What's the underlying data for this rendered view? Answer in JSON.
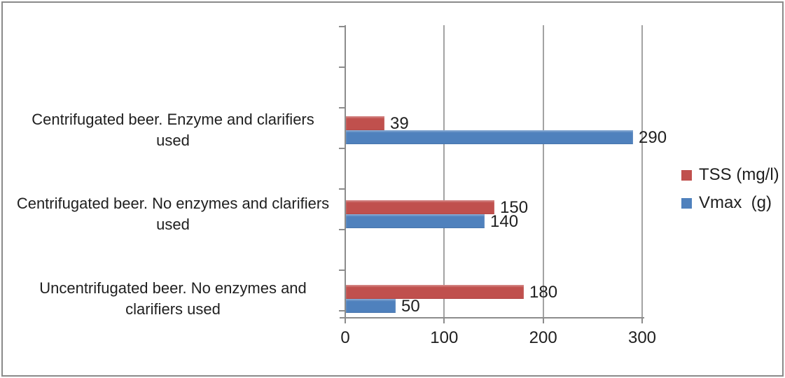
{
  "chart_data": {
    "type": "bar",
    "orientation": "horizontal",
    "title": "",
    "categories": [
      "Centrifugated beer. Enzyme and clarifiers used",
      "Centrifugated beer. No enzymes and clarifiers used",
      "Uncentrifugated beer. No enzymes and clarifiers used"
    ],
    "category_label_lines": [
      [
        "Centrifugated beer. Enzyme and clarifiers",
        "used"
      ],
      [
        "Centrifugated beer. No enzymes and clarifiers",
        "used"
      ],
      [
        "Uncentrifugated beer. No enzymes and",
        "clarifiers used"
      ]
    ],
    "series": [
      {
        "name": "TSS (mg/l)",
        "color": "#C0504D",
        "values": [
          39,
          150,
          180
        ]
      },
      {
        "name": "Vmax  (g)",
        "color": "#4F81BD",
        "values": [
          290,
          140,
          50
        ]
      }
    ],
    "x_axis": {
      "min": 0,
      "max": 300,
      "ticks": [
        0,
        100,
        200,
        300
      ]
    },
    "data_labels_shown": true,
    "legend_position": "right",
    "gridlines": "vertical-major"
  },
  "styles": {
    "gridline_color": "#A3A3A3",
    "axis_color": "#8C8C8C",
    "text_color": "#1F1F1F",
    "frame_border_color": "#8A8A8A",
    "background": "#FFFFFF"
  }
}
